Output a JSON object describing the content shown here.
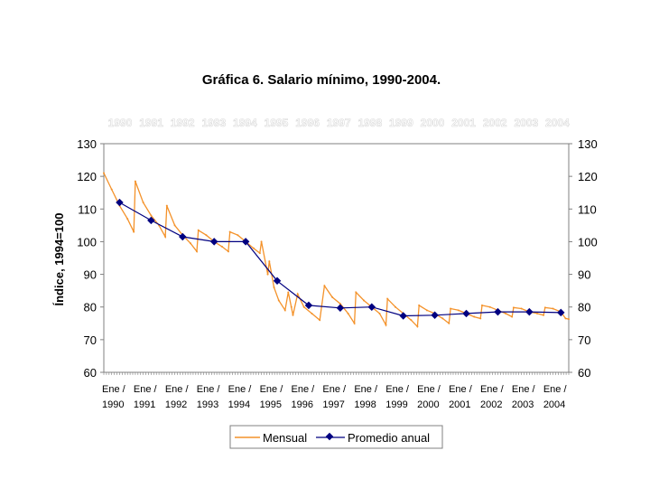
{
  "chart_data": {
    "type": "line",
    "title": "Gráfica 6. Salario mínimo, 1990-2004.",
    "ylabel": "Índice, 1994=100",
    "ylim": [
      60,
      130
    ],
    "yticks": [
      60,
      70,
      80,
      90,
      100,
      110,
      120,
      130
    ],
    "xlim": [
      1990,
      2004.75
    ],
    "year_header": [
      "1990",
      "1991",
      "1992",
      "1993",
      "1994",
      "1995",
      "1996",
      "1997",
      "1998",
      "1999",
      "2000",
      "2001",
      "2002",
      "2003",
      "2004"
    ],
    "xtick_labels": [
      {
        "line1": "Ene /",
        "line2": "1990"
      },
      {
        "line1": "Ene /",
        "line2": "1991"
      },
      {
        "line1": "Ene /",
        "line2": "1992"
      },
      {
        "line1": "Ene /",
        "line2": "1993"
      },
      {
        "line1": "Ene /",
        "line2": "1994"
      },
      {
        "line1": "Ene /",
        "line2": "1995"
      },
      {
        "line1": "Ene /",
        "line2": "1996"
      },
      {
        "line1": "Ene /",
        "line2": "1997"
      },
      {
        "line1": "Ene /",
        "line2": "1998"
      },
      {
        "line1": "Ene /",
        "line2": "1999"
      },
      {
        "line1": "Ene /",
        "line2": "2000"
      },
      {
        "line1": "Ene /",
        "line2": "2001"
      },
      {
        "line1": "Ene /",
        "line2": "2002"
      },
      {
        "line1": "Ene /",
        "line2": "2003"
      },
      {
        "line1": "Ene /",
        "line2": "2004"
      }
    ],
    "series": [
      {
        "name": "Mensual",
        "color": "#f4922a",
        "points": [
          [
            1990.0,
            121
          ],
          [
            1990.25,
            116
          ],
          [
            1990.5,
            111
          ],
          [
            1990.75,
            107
          ],
          [
            1990.95,
            103
          ],
          [
            1991.0,
            118.5
          ],
          [
            1991.25,
            112
          ],
          [
            1991.5,
            108
          ],
          [
            1991.75,
            105
          ],
          [
            1991.95,
            101.5
          ],
          [
            1992.0,
            111
          ],
          [
            1992.25,
            105
          ],
          [
            1992.5,
            102
          ],
          [
            1992.75,
            99.5
          ],
          [
            1992.95,
            97
          ],
          [
            1993.0,
            103.5
          ],
          [
            1993.25,
            102
          ],
          [
            1993.5,
            100
          ],
          [
            1993.75,
            98.5
          ],
          [
            1993.95,
            97
          ],
          [
            1994.0,
            103
          ],
          [
            1994.25,
            102
          ],
          [
            1994.5,
            100
          ],
          [
            1994.75,
            98
          ],
          [
            1994.95,
            96.5
          ],
          [
            1995.0,
            100
          ],
          [
            1995.2,
            90
          ],
          [
            1995.25,
            94
          ],
          [
            1995.4,
            86
          ],
          [
            1995.55,
            82
          ],
          [
            1995.75,
            79
          ],
          [
            1995.85,
            84.5
          ],
          [
            1995.95,
            80
          ],
          [
            1996.0,
            77.5
          ],
          [
            1996.15,
            84
          ],
          [
            1996.35,
            80
          ],
          [
            1996.6,
            78
          ],
          [
            1996.85,
            76
          ],
          [
            1997.0,
            86.5
          ],
          [
            1997.25,
            83
          ],
          [
            1997.5,
            81
          ],
          [
            1997.75,
            78
          ],
          [
            1997.95,
            75
          ],
          [
            1998.0,
            84.5
          ],
          [
            1998.25,
            82
          ],
          [
            1998.5,
            80
          ],
          [
            1998.75,
            78
          ],
          [
            1998.95,
            74.5
          ],
          [
            1999.0,
            82.5
          ],
          [
            1999.25,
            80
          ],
          [
            1999.5,
            78
          ],
          [
            1999.75,
            76
          ],
          [
            1999.95,
            74
          ],
          [
            2000.0,
            80.5
          ],
          [
            2000.25,
            79
          ],
          [
            2000.5,
            78
          ],
          [
            2000.75,
            76.5
          ],
          [
            2000.95,
            75
          ],
          [
            2001.0,
            79.5
          ],
          [
            2001.25,
            79
          ],
          [
            2001.5,
            78
          ],
          [
            2001.75,
            77
          ],
          [
            2001.95,
            76.5
          ],
          [
            2002.0,
            80.5
          ],
          [
            2002.25,
            80
          ],
          [
            2002.5,
            79
          ],
          [
            2002.75,
            78
          ],
          [
            2002.95,
            77
          ],
          [
            2003.0,
            79.8
          ],
          [
            2003.25,
            79.5
          ],
          [
            2003.5,
            78.5
          ],
          [
            2003.75,
            78
          ],
          [
            2003.95,
            77.5
          ],
          [
            2004.0,
            79.8
          ],
          [
            2004.25,
            79.5
          ],
          [
            2004.5,
            78.5
          ],
          [
            2004.65,
            76.5
          ],
          [
            2004.75,
            76.3
          ]
        ]
      },
      {
        "name": "Promedio anual",
        "color": "#000080",
        "points": [
          [
            1990.5,
            112
          ],
          [
            1991.5,
            106.5
          ],
          [
            1992.5,
            101.5
          ],
          [
            1993.5,
            100
          ],
          [
            1994.5,
            100
          ],
          [
            1995.5,
            88
          ],
          [
            1996.5,
            80.5
          ],
          [
            1997.5,
            79.7
          ],
          [
            1998.5,
            80
          ],
          [
            1999.5,
            77.3
          ],
          [
            2000.5,
            77.5
          ],
          [
            2001.5,
            78
          ],
          [
            2002.5,
            78.5
          ],
          [
            2003.5,
            78.5
          ],
          [
            2004.5,
            78.3
          ]
        ]
      }
    ],
    "legend": {
      "position": "bottom"
    },
    "grid": false
  }
}
